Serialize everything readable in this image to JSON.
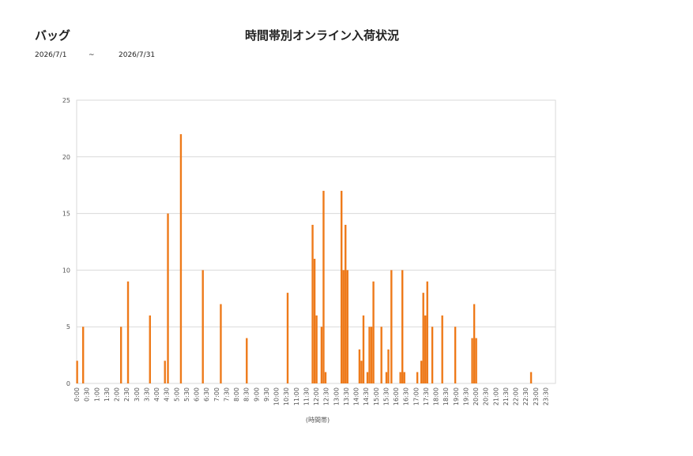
{
  "header": {
    "category": "バッグ",
    "title": "時間帯別オンライン入荷状況",
    "date_start": "2026/7/1",
    "date_sep": "~",
    "date_end": "2026/7/31"
  },
  "chart_data": {
    "type": "bar",
    "xlabel": "(時間帯)",
    "ylabel": "",
    "ylim": [
      0,
      25
    ],
    "yticks": [
      0,
      5,
      10,
      15,
      20,
      25
    ],
    "grid": true,
    "bar_color": "#ee7a1a",
    "categories": [
      "0:00",
      "0:30",
      "1:00",
      "1:30",
      "2:00",
      "2:30",
      "3:00",
      "3:30",
      "4:00",
      "4:30",
      "5:00",
      "5:30",
      "6:00",
      "6:30",
      "7:00",
      "7:30",
      "8:00",
      "8:30",
      "9:00",
      "9:30",
      "10:00",
      "10:30",
      "11:00",
      "11:30",
      "12:00",
      "12:30",
      "13:00",
      "13:30",
      "14:00",
      "14:30",
      "15:00",
      "15:30",
      "16:00",
      "16:30",
      "17:00",
      "17:30",
      "18:00",
      "18:30",
      "19:00",
      "19:30",
      "20:00",
      "20:30",
      "21:00",
      "21:30",
      "22:00",
      "22:30",
      "23:00",
      "23:30"
    ],
    "values": [
      [
        2,
        0,
        0,
        0,
        0,
        0,
        5,
        0,
        0,
        0
      ],
      [
        0,
        0,
        0,
        0,
        0,
        0,
        0,
        0,
        0,
        0
      ],
      [
        0,
        0,
        0,
        0,
        0,
        0,
        0,
        0,
        0,
        0
      ],
      [
        0,
        0,
        0,
        0,
        0,
        0,
        0,
        0,
        0,
        0
      ],
      [
        0,
        0,
        0,
        0,
        5,
        0,
        0,
        0,
        0,
        0
      ],
      [
        0,
        9,
        0,
        0,
        0,
        0,
        0,
        0,
        0,
        0
      ],
      [
        0,
        0,
        0,
        0,
        0,
        0,
        0,
        0,
        0,
        0
      ],
      [
        0,
        0,
        0,
        6,
        0,
        0,
        0,
        0,
        0,
        0
      ],
      [
        0,
        0,
        0,
        0,
        0,
        0,
        0,
        0,
        2,
        0
      ],
      [
        0,
        15,
        0,
        0,
        0,
        0,
        0,
        0,
        0,
        0
      ],
      [
        0,
        0,
        0,
        0,
        22,
        0,
        0,
        0,
        0,
        0
      ],
      [
        0,
        0,
        0,
        0,
        0,
        0,
        0,
        0,
        0,
        0
      ],
      [
        0,
        0,
        0,
        0,
        0,
        0,
        10,
        0,
        0,
        0
      ],
      [
        0,
        0,
        0,
        0,
        0,
        0,
        0,
        0,
        0,
        0
      ],
      [
        0,
        0,
        0,
        0,
        7,
        0,
        0,
        0,
        0,
        0
      ],
      [
        0,
        0,
        0,
        0,
        0,
        0,
        0,
        0,
        0,
        0
      ],
      [
        0,
        0,
        0,
        0,
        0,
        0,
        0,
        0,
        0,
        0
      ],
      [
        4,
        0,
        0,
        0,
        0,
        0,
        0,
        0,
        0,
        0
      ],
      [
        0,
        0,
        0,
        0,
        0,
        0,
        0,
        0,
        0,
        0
      ],
      [
        0,
        0,
        0,
        0,
        0,
        0,
        0,
        0,
        0,
        0
      ],
      [
        0,
        0,
        0,
        0,
        0,
        0,
        0,
        0,
        0,
        0
      ],
      [
        0,
        8,
        0,
        0,
        0,
        0,
        0,
        0,
        0,
        0
      ],
      [
        0,
        0,
        0,
        0,
        0,
        0,
        0,
        0,
        0,
        0
      ],
      [
        0,
        0,
        0,
        0,
        0,
        0,
        14,
        0,
        11,
        0
      ],
      [
        6,
        0,
        0,
        0,
        0,
        5,
        0,
        17,
        0,
        1
      ],
      [
        0,
        0,
        0,
        0,
        0,
        0,
        0,
        0,
        0,
        0
      ],
      [
        0,
        0,
        0,
        0,
        0,
        17,
        0,
        10,
        0,
        14
      ],
      [
        0,
        10,
        0,
        0,
        0,
        0,
        0,
        0,
        0,
        0
      ],
      [
        0,
        0,
        0,
        3,
        0,
        2,
        0,
        6,
        0,
        0
      ],
      [
        0,
        1,
        0,
        5,
        0,
        5,
        0,
        9,
        0,
        0
      ],
      [
        0,
        0,
        0,
        0,
        0,
        5,
        0,
        0,
        0,
        0
      ],
      [
        1,
        0,
        3,
        0,
        0,
        10,
        0,
        0,
        0,
        0
      ],
      [
        0,
        0,
        0,
        0,
        1,
        0,
        10,
        0,
        1,
        0
      ],
      [
        0,
        0,
        0,
        0,
        0,
        0,
        0,
        0,
        0,
        0
      ],
      [
        0,
        1,
        0,
        0,
        0,
        2,
        0,
        8,
        0,
        6
      ],
      [
        0,
        9,
        0,
        0,
        0,
        0,
        5,
        0,
        0,
        0
      ],
      [
        0,
        0,
        0,
        0,
        0,
        0,
        6,
        0,
        0,
        0
      ],
      [
        0,
        0,
        0,
        0,
        0,
        0,
        0,
        0,
        0,
        5
      ],
      [
        0,
        0,
        0,
        0,
        0,
        0,
        0,
        0,
        0,
        0
      ],
      [
        0,
        0,
        0,
        0,
        0,
        0,
        4,
        0,
        7,
        0
      ],
      [
        4,
        0,
        0,
        0,
        0,
        0,
        0,
        0,
        0,
        0
      ],
      [
        0,
        0,
        0,
        0,
        0,
        0,
        0,
        0,
        0,
        0
      ],
      [
        0,
        0,
        0,
        0,
        0,
        0,
        0,
        0,
        0,
        0
      ],
      [
        0,
        0,
        0,
        0,
        0,
        0,
        0,
        0,
        0,
        0
      ],
      [
        0,
        0,
        0,
        0,
        0,
        0,
        0,
        0,
        0,
        0
      ],
      [
        0,
        0,
        0,
        0,
        0,
        1,
        0,
        0,
        0,
        0
      ],
      [
        0,
        0,
        0,
        0,
        0,
        0,
        0,
        0,
        0,
        0
      ],
      [
        0,
        0,
        0,
        0,
        0,
        0,
        0,
        0,
        0,
        0
      ]
    ]
  }
}
